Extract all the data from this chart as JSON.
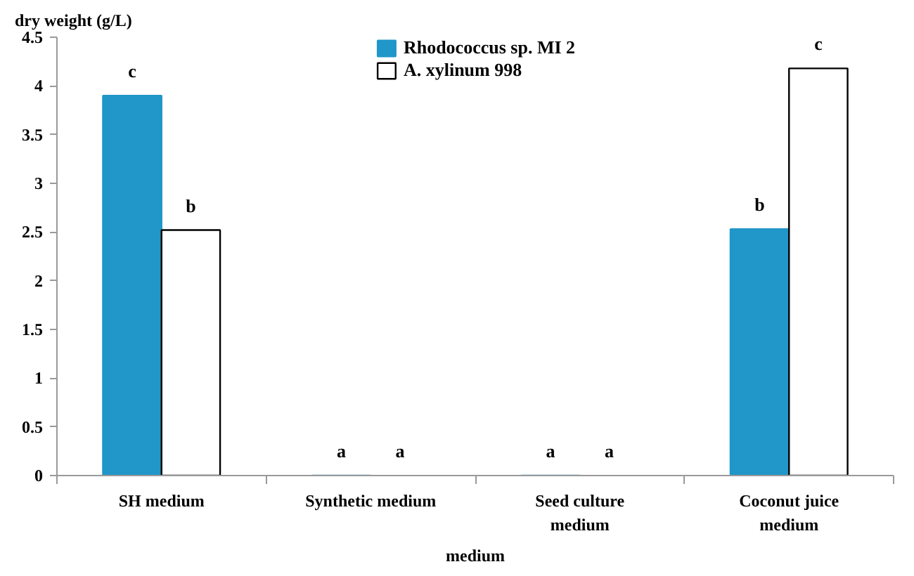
{
  "chart_data": {
    "type": "bar",
    "xlabel": "medium",
    "ylabel": "dry weight (g/L)",
    "categories": [
      "SH medium",
      "Synthetic medium",
      "Seed culture medium",
      "Coconut juice medium"
    ],
    "series": [
      {
        "name": "Rhodococcus sp. MI 2",
        "color": "#2196c9",
        "values": [
          3.9,
          0,
          0,
          2.53
        ],
        "value_labels": [
          "c",
          "a",
          "a",
          "b"
        ]
      },
      {
        "name": "A. xylinum 998",
        "color": "#ffffff",
        "values": [
          2.52,
          0,
          0,
          4.18
        ],
        "value_labels": [
          "b",
          "a",
          "a",
          "c"
        ]
      }
    ],
    "ylim": [
      0,
      4.5
    ],
    "yticks": [
      0,
      0.5,
      1,
      1.5,
      2,
      2.5,
      3,
      3.5,
      4,
      4.5
    ],
    "grid": false,
    "legend": "top"
  }
}
